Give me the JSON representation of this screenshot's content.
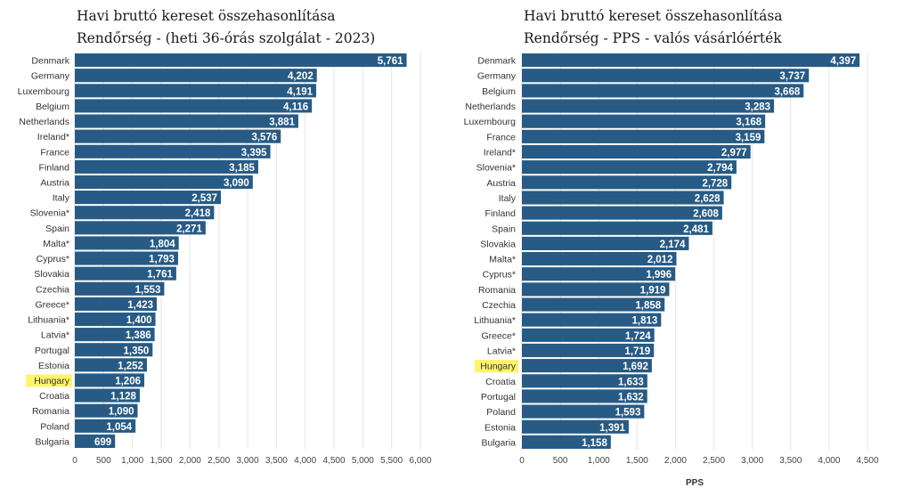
{
  "chart_data": [
    {
      "type": "bar",
      "title": "Havi bruttó kereset összehasonlítása",
      "subtitle": "Rendőrség - (heti 36-órás szolgálat - 2023)",
      "xlabel": "",
      "ylabel": "",
      "xlim": [
        0,
        6000
      ],
      "ticks": [
        "0",
        "500",
        "1,000",
        "1,500",
        "2,000",
        "2,500",
        "3,000",
        "3,500",
        "4,000",
        "4,500",
        "5,000",
        "5,500",
        "6,000"
      ],
      "highlight": "Hungary",
      "categories": [
        "Denmark",
        "Germany",
        "Luxembourg",
        "Belgium",
        "Netherlands",
        "Ireland*",
        "France",
        "Finland",
        "Austria",
        "Italy",
        "Slovenia*",
        "Spain",
        "Malta*",
        "Cyprus*",
        "Slovakia",
        "Czechia",
        "Greece*",
        "Lithuania*",
        "Latvia*",
        "Portugal",
        "Estonia",
        "Hungary",
        "Croatia",
        "Romania",
        "Poland",
        "Bulgaria"
      ],
      "values": [
        5761,
        4202,
        4191,
        4116,
        3881,
        3576,
        3395,
        3185,
        3090,
        2537,
        2418,
        2271,
        1804,
        1793,
        1761,
        1553,
        1423,
        1400,
        1386,
        1350,
        1252,
        1206,
        1128,
        1090,
        1054,
        699
      ],
      "labels": [
        "5,761",
        "4,202",
        "4,191",
        "4,116",
        "3,881",
        "3,576",
        "3,395",
        "3,185",
        "3,090",
        "2,537",
        "2,418",
        "2,271",
        "1,804",
        "1,793",
        "1,761",
        "1,553",
        "1,423",
        "1,400",
        "1,386",
        "1,350",
        "1,252",
        "1,206",
        "1,128",
        "1,090",
        "1,054",
        "699"
      ]
    },
    {
      "type": "bar",
      "title": "Havi bruttó kereset összehasonlítása",
      "subtitle": "Rendőrség - PPS - valós vásárlóérték",
      "xlabel": "PPS",
      "ylabel": "",
      "xlim": [
        0,
        4500
      ],
      "ticks": [
        "0",
        "500",
        "1,000",
        "1,500",
        "2,000",
        "2,500",
        "3,000",
        "3,500",
        "4,000",
        "4,500"
      ],
      "highlight": "Hungary",
      "categories": [
        "Denmark",
        "Germany",
        "Belgium",
        "Netherlands",
        "Luxembourg",
        "France",
        "Ireland*",
        "Slovenia*",
        "Austria",
        "Italy",
        "Finland",
        "Spain",
        "Slovakia",
        "Malta*",
        "Cyprus*",
        "Romania",
        "Czechia",
        "Lithuania*",
        "Greece*",
        "Latvia*",
        "Hungary",
        "Croatia",
        "Portugal",
        "Poland",
        "Estonia",
        "Bulgaria"
      ],
      "values": [
        4397,
        3737,
        3668,
        3283,
        3168,
        3159,
        2977,
        2794,
        2728,
        2628,
        2608,
        2481,
        2174,
        2012,
        1996,
        1919,
        1858,
        1813,
        1724,
        1719,
        1692,
        1633,
        1632,
        1593,
        1391,
        1158
      ],
      "labels": [
        "4,397",
        "3,737",
        "3,668",
        "3,283",
        "3,168",
        "3,159",
        "2,977",
        "2,794",
        "2,728",
        "2,628",
        "2,608",
        "2,481",
        "2,174",
        "2,012",
        "1,996",
        "1,919",
        "1,858",
        "1,813",
        "1,724",
        "1,719",
        "1,692",
        "1,633",
        "1,632",
        "1,593",
        "1,391",
        "1,158"
      ]
    }
  ],
  "colors": {
    "bar": "#275b85",
    "highlight": "#fff46a",
    "grid": "#e6e6e6",
    "label": "#333333"
  }
}
